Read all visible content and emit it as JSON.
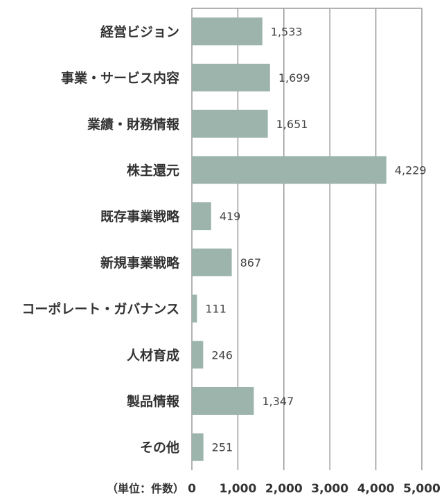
{
  "chart_data": {
    "type": "bar",
    "orientation": "horizontal",
    "categories": [
      "経営ビジョン",
      "事業・サービス内容",
      "業績・財務情報",
      "株主還元",
      "既存事業戦略",
      "新規事業戦略",
      "コーポレート・ガバナンス",
      "人材育成",
      "製品情報",
      "その他"
    ],
    "values": [
      1533,
      1699,
      1651,
      4229,
      419,
      867,
      111,
      246,
      1347,
      251
    ],
    "data_labels": [
      "1,533",
      "1,699",
      "1,651",
      "4,229",
      "419",
      "867",
      "111",
      "246",
      "1,347",
      "251"
    ],
    "xlim": [
      0,
      5000
    ],
    "ticks": [
      0,
      1000,
      2000,
      3000,
      4000,
      5000
    ],
    "tick_labels": [
      "0",
      "1,000",
      "2,000",
      "3,000",
      "4,000",
      "5,000"
    ],
    "unit_label": "（単位：件数）",
    "grid": true,
    "bar_color": "#9cb4ab",
    "grid_color": "#9a9a9a"
  }
}
